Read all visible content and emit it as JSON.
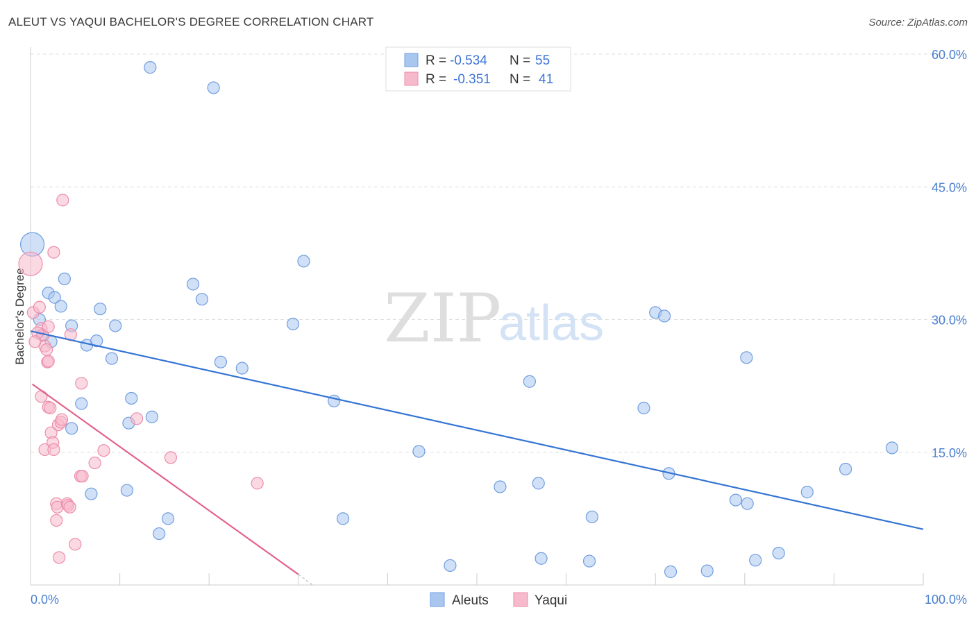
{
  "title": "ALEUT VS YAQUI BACHELOR'S DEGREE CORRELATION CHART",
  "source": "Source: ZipAtlas.com",
  "watermark": {
    "zip": "ZIP",
    "atlas": "atlas"
  },
  "colors": {
    "aleut_fill": "#a9c6ef",
    "aleut_stroke": "#6f9de0",
    "aleut_line": "#3474d4",
    "yaqui_fill": "#f7b9cc",
    "yaqui_stroke": "#ec8dab",
    "yaqui_line": "#e2628e",
    "grid": "#dddddd",
    "tick_text": "#4a7fcf"
  },
  "legend": {
    "r_label": "R =",
    "n_label": "N =",
    "aleut": {
      "r": "-0.534",
      "n": "55"
    },
    "yaqui": {
      "r": "-0.351",
      "n": "41"
    }
  },
  "bottom_legend": {
    "aleut": "Aleuts",
    "yaqui": "Yaqui"
  },
  "chart_data": {
    "type": "scatter",
    "title": "ALEUT VS YAQUI BACHELOR'S DEGREE CORRELATION CHART",
    "xlabel": "",
    "ylabel": "Bachelor's Degree",
    "xlim": [
      0,
      100
    ],
    "ylim": [
      0,
      63
    ],
    "x_tick_labels": [
      "0.0%",
      "100.0%"
    ],
    "y_ticks": [
      15,
      30,
      45,
      60
    ],
    "y_tick_labels": [
      "15.0%",
      "30.0%",
      "45.0%",
      "60.0%"
    ],
    "series": [
      {
        "name": "Aleuts",
        "r": -0.534,
        "n": 55,
        "trend": {
          "x": [
            0,
            100
          ],
          "y": [
            28.7,
            6.3
          ]
        },
        "points": [
          {
            "x": 0.2,
            "y": 38.5,
            "big": true
          },
          {
            "x": 13.4,
            "y": 58.5
          },
          {
            "x": 20.5,
            "y": 56.2
          },
          {
            "x": 1.0,
            "y": 30.0
          },
          {
            "x": 1.3,
            "y": 28.3
          },
          {
            "x": 2.0,
            "y": 33.0
          },
          {
            "x": 2.3,
            "y": 27.5
          },
          {
            "x": 2.7,
            "y": 32.5
          },
          {
            "x": 3.4,
            "y": 31.5
          },
          {
            "x": 3.8,
            "y": 34.6
          },
          {
            "x": 4.6,
            "y": 29.3
          },
          {
            "x": 6.3,
            "y": 27.1
          },
          {
            "x": 7.4,
            "y": 27.6
          },
          {
            "x": 7.8,
            "y": 31.2
          },
          {
            "x": 9.1,
            "y": 25.6
          },
          {
            "x": 9.5,
            "y": 29.3
          },
          {
            "x": 5.7,
            "y": 20.5
          },
          {
            "x": 4.6,
            "y": 17.7
          },
          {
            "x": 11.0,
            "y": 18.3
          },
          {
            "x": 11.3,
            "y": 21.1
          },
          {
            "x": 13.6,
            "y": 19.0
          },
          {
            "x": 6.8,
            "y": 10.3
          },
          {
            "x": 10.8,
            "y": 10.7
          },
          {
            "x": 15.4,
            "y": 7.5
          },
          {
            "x": 14.4,
            "y": 5.8
          },
          {
            "x": 18.2,
            "y": 34.0
          },
          {
            "x": 19.2,
            "y": 32.3
          },
          {
            "x": 21.3,
            "y": 25.2
          },
          {
            "x": 23.7,
            "y": 24.5
          },
          {
            "x": 29.4,
            "y": 29.5
          },
          {
            "x": 30.6,
            "y": 36.6
          },
          {
            "x": 34.0,
            "y": 20.8
          },
          {
            "x": 35.0,
            "y": 7.5
          },
          {
            "x": 43.5,
            "y": 15.1
          },
          {
            "x": 47.0,
            "y": 2.2
          },
          {
            "x": 52.6,
            "y": 11.1
          },
          {
            "x": 55.9,
            "y": 23.0
          },
          {
            "x": 56.9,
            "y": 11.5
          },
          {
            "x": 57.2,
            "y": 3.0
          },
          {
            "x": 62.6,
            "y": 2.7
          },
          {
            "x": 62.9,
            "y": 7.7
          },
          {
            "x": 68.7,
            "y": 20.0
          },
          {
            "x": 70.0,
            "y": 30.8
          },
          {
            "x": 71.0,
            "y": 30.4
          },
          {
            "x": 71.5,
            "y": 12.6
          },
          {
            "x": 71.7,
            "y": 1.5
          },
          {
            "x": 75.8,
            "y": 1.6
          },
          {
            "x": 79.0,
            "y": 9.6
          },
          {
            "x": 80.3,
            "y": 9.2
          },
          {
            "x": 80.2,
            "y": 25.7
          },
          {
            "x": 81.2,
            "y": 2.8
          },
          {
            "x": 83.8,
            "y": 3.6
          },
          {
            "x": 87.0,
            "y": 10.5
          },
          {
            "x": 91.3,
            "y": 13.1
          },
          {
            "x": 96.5,
            "y": 15.5
          }
        ]
      },
      {
        "name": "Yaqui",
        "r": -0.351,
        "n": 41,
        "trend": {
          "x": [
            0.2,
            30.0
          ],
          "y": [
            22.7,
            1.2
          ],
          "dash_to": {
            "x": 31.6,
            "y": 0.0
          }
        },
        "points": [
          {
            "x": 0.0,
            "y": 36.3,
            "big": true
          },
          {
            "x": 3.6,
            "y": 43.5
          },
          {
            "x": 2.6,
            "y": 37.6
          },
          {
            "x": 0.3,
            "y": 30.8
          },
          {
            "x": 1.0,
            "y": 31.4
          },
          {
            "x": 1.2,
            "y": 29.0
          },
          {
            "x": 1.4,
            "y": 28.2
          },
          {
            "x": 1.6,
            "y": 27.0
          },
          {
            "x": 1.8,
            "y": 26.6
          },
          {
            "x": 2.0,
            "y": 29.2
          },
          {
            "x": 0.8,
            "y": 28.5
          },
          {
            "x": 0.5,
            "y": 27.5
          },
          {
            "x": 1.9,
            "y": 25.2
          },
          {
            "x": 5.7,
            "y": 22.8
          },
          {
            "x": 1.2,
            "y": 21.3
          },
          {
            "x": 2.0,
            "y": 20.1
          },
          {
            "x": 2.2,
            "y": 20.0
          },
          {
            "x": 3.1,
            "y": 18.1
          },
          {
            "x": 3.4,
            "y": 18.4
          },
          {
            "x": 3.5,
            "y": 18.7
          },
          {
            "x": 2.3,
            "y": 17.2
          },
          {
            "x": 2.5,
            "y": 16.1
          },
          {
            "x": 1.6,
            "y": 15.3
          },
          {
            "x": 2.6,
            "y": 15.3
          },
          {
            "x": 5.6,
            "y": 12.3
          },
          {
            "x": 5.8,
            "y": 12.3
          },
          {
            "x": 7.2,
            "y": 13.8
          },
          {
            "x": 8.2,
            "y": 15.2
          },
          {
            "x": 11.9,
            "y": 18.8
          },
          {
            "x": 15.7,
            "y": 14.4
          },
          {
            "x": 25.4,
            "y": 11.5
          },
          {
            "x": 2.9,
            "y": 9.2
          },
          {
            "x": 3.0,
            "y": 8.8
          },
          {
            "x": 4.1,
            "y": 9.2
          },
          {
            "x": 4.2,
            "y": 9.0
          },
          {
            "x": 4.4,
            "y": 8.8
          },
          {
            "x": 2.9,
            "y": 7.3
          },
          {
            "x": 5.0,
            "y": 4.6
          },
          {
            "x": 3.2,
            "y": 3.1
          },
          {
            "x": 4.5,
            "y": 28.3
          },
          {
            "x": 2.0,
            "y": 25.3
          }
        ]
      }
    ]
  }
}
